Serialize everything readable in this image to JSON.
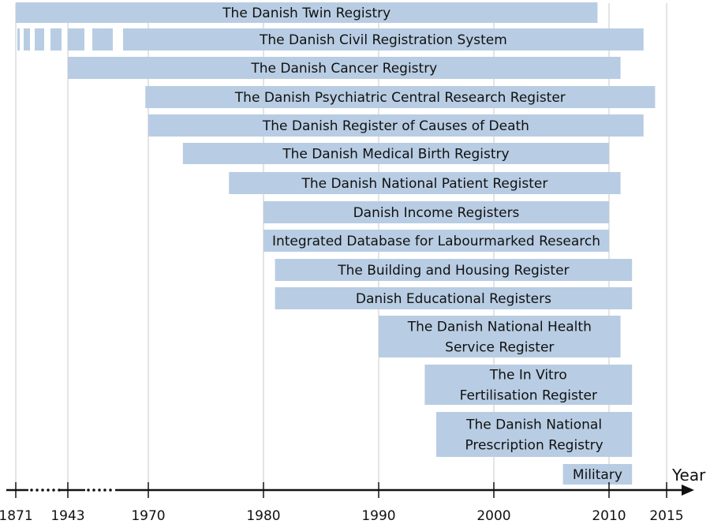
{
  "chart_data": {
    "type": "bar",
    "orientation": "horizontal timeline",
    "xlabel": "Year",
    "ticks": [
      "1871",
      "1943",
      "1970",
      "1980",
      "1990",
      "2000",
      "2010",
      "2015"
    ],
    "grid": true,
    "color": "#b8cde3",
    "registers": [
      {
        "label": [
          "The Danish Twin Registry"
        ],
        "start": 1871,
        "end": 2009,
        "dashed_until": null
      },
      {
        "label": [
          "The Danish Civil Registration System"
        ],
        "start": 1871,
        "end": 2013,
        "dashed_until": 1967
      },
      {
        "label": [
          "The Danish Cancer Registry"
        ],
        "start": 1943,
        "end": 2011
      },
      {
        "label": [
          "The Danish Psychiatric Central Research Register"
        ],
        "start": 1969,
        "end": 2014
      },
      {
        "label": [
          "The Danish Register of Causes of Death"
        ],
        "start": 1970,
        "end": 2013
      },
      {
        "label": [
          "The Danish Medical Birth Registry"
        ],
        "start": 1973,
        "end": 2010
      },
      {
        "label": [
          "The Danish National Patient Register"
        ],
        "start": 1977,
        "end": 2011
      },
      {
        "label": [
          "Danish Income Registers"
        ],
        "start": 1980,
        "end": 2010
      },
      {
        "label": [
          "Integrated Database for Labourmarked Research"
        ],
        "start": 1980,
        "end": 2010
      },
      {
        "label": [
          "The Building and Housing Register"
        ],
        "start": 1981,
        "end": 2012
      },
      {
        "label": [
          "Danish Educational Registers"
        ],
        "start": 1981,
        "end": 2012
      },
      {
        "label": [
          "The Danish National Health",
          "Service Register"
        ],
        "start": 1990,
        "end": 2011
      },
      {
        "label": [
          "The In Vitro",
          "Fertilisation Register"
        ],
        "start": 1994,
        "end": 2012
      },
      {
        "label": [
          "The Danish National",
          "Prescription Registry"
        ],
        "start": 1995,
        "end": 2012
      },
      {
        "label": [
          "Military"
        ],
        "start": 2006,
        "end": 2012
      }
    ]
  }
}
